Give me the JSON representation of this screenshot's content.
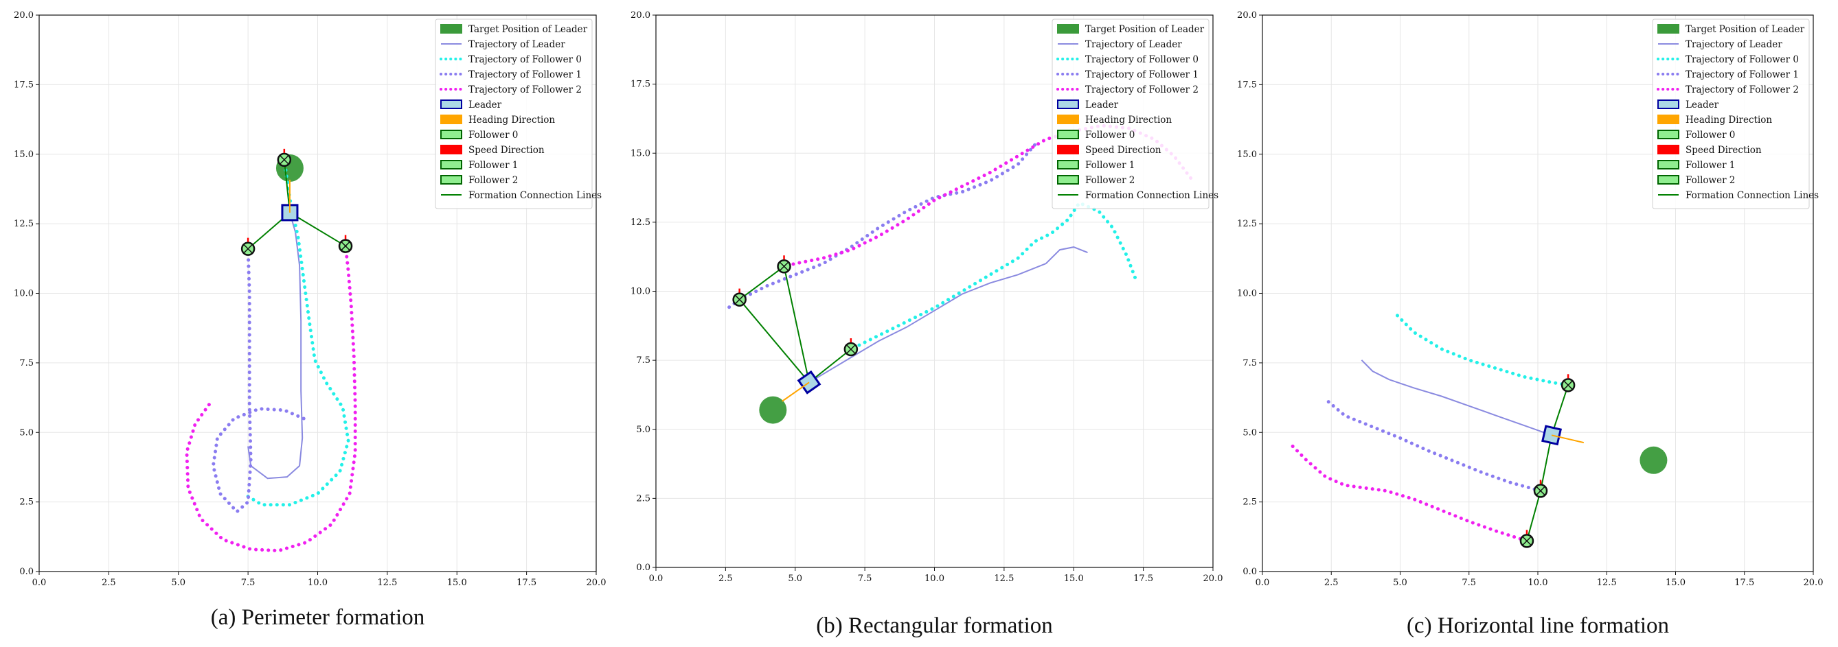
{
  "legend_entries": [
    {
      "label": "Target Position of Leader",
      "kind": "patch",
      "color": "#3a9a3a",
      "edge": "#3a9a3a"
    },
    {
      "label": "Trajectory of Leader",
      "kind": "line",
      "color": "#8a8ae0"
    },
    {
      "label": "Trajectory of Follower 0",
      "kind": "dotted",
      "color": "#22f0e8"
    },
    {
      "label": "Trajectory of Follower 1",
      "kind": "dotted",
      "color": "#8a7cf0"
    },
    {
      "label": "Trajectory of Follower 2",
      "kind": "dotted",
      "color": "#f020f0"
    },
    {
      "label": "Leader",
      "kind": "patch",
      "color": "#add8e6",
      "edge": "#0000a0"
    },
    {
      "label": "Heading Direction",
      "kind": "patch",
      "color": "#ffa500",
      "edge": "#ffa500"
    },
    {
      "label": "Follower 0",
      "kind": "patch",
      "color": "#90ee90",
      "edge": "#006400"
    },
    {
      "label": "Speed Direction",
      "kind": "patch",
      "color": "#ff0000",
      "edge": "#ff0000"
    },
    {
      "label": "Follower 1",
      "kind": "patch",
      "color": "#90ee90",
      "edge": "#006400"
    },
    {
      "label": "Follower 2",
      "kind": "patch",
      "color": "#90ee90",
      "edge": "#006400"
    },
    {
      "label": "Formation Connection Lines",
      "kind": "line",
      "color": "#008000"
    }
  ],
  "colors": {
    "leader_traj": "#8a8ae0",
    "follower0": "#22f0e8",
    "follower1": "#8a7cf0",
    "follower2": "#f020f0",
    "connection": "#008000",
    "target": "#3a9a3a",
    "heading": "#ffa500",
    "speed": "#ff0000"
  },
  "chart_data": [
    {
      "type": "line",
      "caption": "(a) Perimeter formation",
      "xlim": [
        0,
        20
      ],
      "ylim": [
        0,
        20
      ],
      "xticks": [
        "0.0",
        "2.5",
        "5.0",
        "7.5",
        "10.0",
        "12.5",
        "15.0",
        "17.5",
        "20.0"
      ],
      "yticks": [
        "0.0",
        "2.5",
        "5.0",
        "7.5",
        "10.0",
        "12.5",
        "15.0",
        "17.5",
        "20.0"
      ],
      "grid": true,
      "legend": "top-right",
      "target": [
        9.0,
        14.5
      ],
      "leader": {
        "pos": [
          9.0,
          12.9
        ],
        "heading_deg": 90
      },
      "followers": [
        [
          8.8,
          14.8
        ],
        [
          7.5,
          11.6
        ],
        [
          11.0,
          11.7
        ]
      ],
      "series": [
        {
          "key": "leader",
          "points": [
            [
              7.5,
              4.5
            ],
            [
              7.6,
              3.8
            ],
            [
              8.2,
              3.35
            ],
            [
              8.9,
              3.4
            ],
            [
              9.35,
              3.8
            ],
            [
              9.45,
              4.8
            ],
            [
              9.4,
              6.5
            ],
            [
              9.4,
              9.0
            ],
            [
              9.35,
              11.0
            ],
            [
              9.2,
              12.2
            ],
            [
              9.0,
              12.9
            ]
          ]
        },
        {
          "key": "follower0",
          "points": [
            [
              7.5,
              2.7
            ],
            [
              8.0,
              2.4
            ],
            [
              9.0,
              2.4
            ],
            [
              10.0,
              2.8
            ],
            [
              10.8,
              3.6
            ],
            [
              11.1,
              4.7
            ],
            [
              10.9,
              5.9
            ],
            [
              10.3,
              6.8
            ],
            [
              9.9,
              7.6
            ],
            [
              9.7,
              9.0
            ],
            [
              9.5,
              10.5
            ],
            [
              9.3,
              12.0
            ],
            [
              9.0,
              13.4
            ],
            [
              8.8,
              14.8
            ]
          ]
        },
        {
          "key": "follower1",
          "points": [
            [
              9.5,
              5.5
            ],
            [
              8.8,
              5.8
            ],
            [
              7.9,
              5.85
            ],
            [
              7.0,
              5.5
            ],
            [
              6.4,
              4.8
            ],
            [
              6.25,
              3.8
            ],
            [
              6.5,
              2.8
            ],
            [
              7.1,
              2.15
            ],
            [
              7.5,
              2.5
            ],
            [
              7.6,
              4.0
            ],
            [
              7.55,
              6.0
            ],
            [
              7.55,
              8.0
            ],
            [
              7.55,
              10.0
            ],
            [
              7.5,
              11.6
            ]
          ]
        },
        {
          "key": "follower2",
          "points": [
            [
              6.1,
              6.0
            ],
            [
              5.6,
              5.3
            ],
            [
              5.3,
              4.3
            ],
            [
              5.35,
              3.0
            ],
            [
              5.8,
              1.9
            ],
            [
              6.6,
              1.15
            ],
            [
              7.6,
              0.8
            ],
            [
              8.6,
              0.75
            ],
            [
              9.6,
              1.05
            ],
            [
              10.5,
              1.7
            ],
            [
              11.15,
              2.8
            ],
            [
              11.35,
              4.3
            ],
            [
              11.35,
              6.0
            ],
            [
              11.3,
              7.8
            ],
            [
              11.2,
              9.6
            ],
            [
              11.1,
              10.8
            ],
            [
              11.0,
              11.7
            ]
          ]
        }
      ],
      "connections": [
        [
          [
            9.0,
            12.9
          ],
          [
            8.8,
            14.8
          ]
        ],
        [
          [
            9.0,
            12.9
          ],
          [
            7.5,
            11.6
          ]
        ],
        [
          [
            9.0,
            12.9
          ],
          [
            11.0,
            11.7
          ]
        ]
      ]
    },
    {
      "type": "line",
      "caption": "(b) Rectangular formation",
      "xlim": [
        0,
        20
      ],
      "ylim": [
        0,
        20
      ],
      "xticks": [
        "0.0",
        "2.5",
        "5.0",
        "7.5",
        "10.0",
        "12.5",
        "15.0",
        "17.5",
        "20.0"
      ],
      "yticks": [
        "0.0",
        "2.5",
        "5.0",
        "7.5",
        "10.0",
        "12.5",
        "15.0",
        "17.5",
        "20.0"
      ],
      "grid": true,
      "legend": "top-right",
      "target": [
        4.2,
        5.7
      ],
      "leader": {
        "pos": [
          5.5,
          6.7
        ],
        "heading_deg": 215
      },
      "followers": [
        [
          7.0,
          7.9
        ],
        [
          3.0,
          9.7
        ],
        [
          4.6,
          10.9
        ]
      ],
      "series": [
        {
          "key": "leader",
          "points": [
            [
              15.5,
              11.4
            ],
            [
              15.0,
              11.6
            ],
            [
              14.5,
              11.5
            ],
            [
              14.0,
              11.0
            ],
            [
              13.0,
              10.6
            ],
            [
              12.0,
              10.3
            ],
            [
              11.0,
              9.9
            ],
            [
              10.0,
              9.3
            ],
            [
              9.0,
              8.7
            ],
            [
              8.0,
              8.2
            ],
            [
              7.0,
              7.6
            ],
            [
              6.0,
              7.0
            ],
            [
              5.5,
              6.7
            ]
          ]
        },
        {
          "key": "follower0",
          "points": [
            [
              17.2,
              10.5
            ],
            [
              16.9,
              11.3
            ],
            [
              16.4,
              12.3
            ],
            [
              15.9,
              12.9
            ],
            [
              15.2,
              13.2
            ],
            [
              14.8,
              12.6
            ],
            [
              14.2,
              12.1
            ],
            [
              13.6,
              11.8
            ],
            [
              13.0,
              11.2
            ],
            [
              12.0,
              10.6
            ],
            [
              11.0,
              10.0
            ],
            [
              10.0,
              9.4
            ],
            [
              9.0,
              8.9
            ],
            [
              8.0,
              8.4
            ],
            [
              7.0,
              7.9
            ]
          ]
        },
        {
          "key": "follower1",
          "points": [
            [
              13.6,
              15.3
            ],
            [
              13.0,
              14.6
            ],
            [
              12.0,
              14.0
            ],
            [
              11.0,
              13.6
            ],
            [
              10.0,
              13.4
            ],
            [
              9.0,
              12.9
            ],
            [
              8.0,
              12.3
            ],
            [
              7.0,
              11.6
            ],
            [
              6.0,
              11.0
            ],
            [
              5.0,
              10.6
            ],
            [
              4.0,
              10.2
            ],
            [
              3.0,
              9.7
            ],
            [
              2.6,
              9.4
            ]
          ]
        },
        {
          "key": "follower2",
          "points": [
            [
              19.2,
              14.1
            ],
            [
              18.6,
              14.9
            ],
            [
              17.9,
              15.5
            ],
            [
              17.0,
              15.9
            ],
            [
              16.0,
              16.0
            ],
            [
              15.0,
              15.8
            ],
            [
              14.0,
              15.5
            ],
            [
              13.0,
              14.9
            ],
            [
              12.0,
              14.3
            ],
            [
              11.0,
              13.8
            ],
            [
              10.0,
              13.3
            ],
            [
              9.0,
              12.6
            ],
            [
              8.0,
              12.0
            ],
            [
              7.0,
              11.5
            ],
            [
              6.0,
              11.2
            ],
            [
              5.0,
              11.0
            ],
            [
              4.6,
              10.9
            ]
          ]
        }
      ],
      "connections": [
        [
          [
            5.5,
            6.7
          ],
          [
            7.0,
            7.9
          ]
        ],
        [
          [
            5.5,
            6.7
          ],
          [
            3.0,
            9.7
          ]
        ],
        [
          [
            5.5,
            6.7
          ],
          [
            4.6,
            10.9
          ]
        ],
        [
          [
            3.0,
            9.7
          ],
          [
            4.6,
            10.9
          ]
        ]
      ]
    },
    {
      "type": "line",
      "caption": "(c) Horizontal line formation",
      "xlim": [
        0,
        20
      ],
      "ylim": [
        0,
        20
      ],
      "xticks": [
        "0.0",
        "2.5",
        "5.0",
        "7.5",
        "10.0",
        "12.5",
        "15.0",
        "17.5",
        "20.0"
      ],
      "yticks": [
        "0.0",
        "2.5",
        "5.0",
        "7.5",
        "10.0",
        "12.5",
        "15.0",
        "17.5",
        "20.0"
      ],
      "grid": true,
      "legend": "top-right",
      "target": [
        14.2,
        4.0
      ],
      "leader": {
        "pos": [
          10.5,
          4.9
        ],
        "heading_deg": -13
      },
      "followers": [
        [
          11.1,
          6.7
        ],
        [
          10.1,
          2.9
        ],
        [
          9.6,
          1.1
        ]
      ],
      "series": [
        {
          "key": "leader",
          "points": [
            [
              3.6,
              7.6
            ],
            [
              4.0,
              7.2
            ],
            [
              4.6,
              6.9
            ],
            [
              5.5,
              6.6
            ],
            [
              6.5,
              6.3
            ],
            [
              7.5,
              5.95
            ],
            [
              8.5,
              5.6
            ],
            [
              9.5,
              5.25
            ],
            [
              10.5,
              4.9
            ]
          ]
        },
        {
          "key": "follower0",
          "points": [
            [
              4.9,
              9.2
            ],
            [
              5.5,
              8.6
            ],
            [
              6.5,
              8.0
            ],
            [
              7.5,
              7.6
            ],
            [
              8.5,
              7.3
            ],
            [
              9.5,
              7.0
            ],
            [
              10.5,
              6.8
            ],
            [
              11.1,
              6.7
            ]
          ]
        },
        {
          "key": "follower1",
          "points": [
            [
              2.4,
              6.1
            ],
            [
              3.0,
              5.6
            ],
            [
              4.0,
              5.2
            ],
            [
              5.0,
              4.8
            ],
            [
              6.0,
              4.35
            ],
            [
              7.0,
              3.95
            ],
            [
              8.0,
              3.55
            ],
            [
              9.0,
              3.2
            ],
            [
              10.1,
              2.9
            ]
          ]
        },
        {
          "key": "follower2",
          "points": [
            [
              1.1,
              4.5
            ],
            [
              1.6,
              4.0
            ],
            [
              2.3,
              3.4
            ],
            [
              3.0,
              3.1
            ],
            [
              4.5,
              2.9
            ],
            [
              5.5,
              2.6
            ],
            [
              6.5,
              2.2
            ],
            [
              7.5,
              1.8
            ],
            [
              8.5,
              1.45
            ],
            [
              9.6,
              1.1
            ]
          ]
        }
      ],
      "connections": [
        [
          [
            10.5,
            4.9
          ],
          [
            11.1,
            6.7
          ]
        ],
        [
          [
            10.5,
            4.9
          ],
          [
            10.1,
            2.9
          ]
        ],
        [
          [
            10.1,
            2.9
          ],
          [
            9.6,
            1.1
          ]
        ]
      ]
    }
  ]
}
